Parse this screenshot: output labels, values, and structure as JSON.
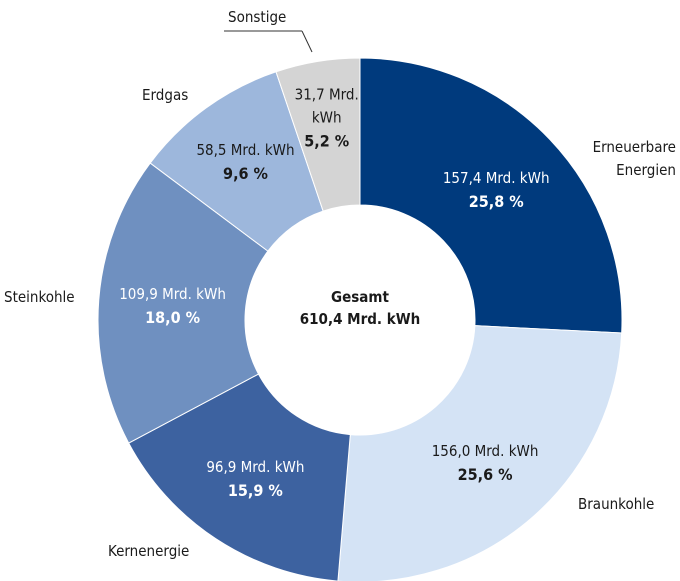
{
  "chart_data": {
    "type": "donut",
    "categories": [
      "Erneuerbare Energien",
      "Braunkohle",
      "Kernenergie",
      "Steinkohle",
      "Erdgas",
      "Sonstige"
    ],
    "values": [
      157.4,
      156.0,
      96.9,
      109.9,
      58.5,
      31.7
    ],
    "value_labels": [
      "157,4 Mrd. kWh",
      "156,0 Mrd. kWh",
      "96,9 Mrd. kWh",
      "109,9 Mrd. kWh",
      "58,5 Mrd. kWh",
      "31,7 Mrd. kWh"
    ],
    "percentages": [
      25.8,
      25.6,
      15.9,
      18.0,
      9.6,
      5.2
    ],
    "percent_labels": [
      "25,8 %",
      "25,6 %",
      "15,9 %",
      "18,0 %",
      "9,6 %",
      "5,2 %"
    ],
    "colors": [
      "#003a7d",
      "#d4e3f5",
      "#3d62a0",
      "#6f90c0",
      "#9db7dc",
      "#d4d4d4"
    ],
    "center_label": "Gesamt",
    "total": 610.4,
    "total_label": "610,4 Mrd. kWh"
  }
}
